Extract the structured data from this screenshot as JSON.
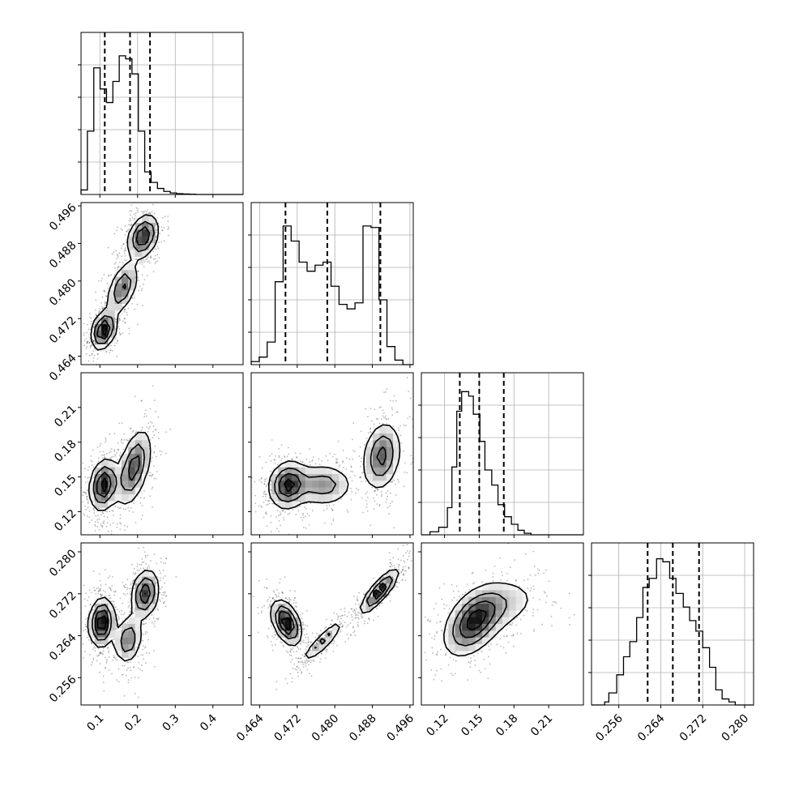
{
  "chart_data": {
    "type": "corner",
    "grid": true,
    "parameters": [
      {
        "range": [
          0.05,
          0.48
        ],
        "ticks": [
          0.1,
          0.2,
          0.3,
          0.4
        ],
        "tick_labels": [
          "0.1",
          "0.2",
          "0.3",
          "0.4"
        ],
        "quantiles": [
          0.113,
          0.18,
          0.233
        ],
        "hist_edges": [
          0.05,
          0.0669,
          0.0838,
          0.1007,
          0.1176,
          0.1345,
          0.1514,
          0.1683,
          0.1852,
          0.2021,
          0.219,
          0.2359,
          0.2528,
          0.2697,
          0.2866,
          0.3035,
          0.3204,
          0.3373,
          0.3542,
          0.48
        ],
        "hist_counts": [
          0.03,
          0.42,
          0.84,
          0.7,
          0.61,
          0.75,
          0.92,
          0.9,
          0.8,
          0.42,
          0.15,
          0.08,
          0.04,
          0.02,
          0.01,
          0.005,
          0.003,
          0.002,
          0
        ]
      },
      {
        "range": [
          0.4622,
          0.4967
        ],
        "ticks": [
          0.464,
          0.472,
          0.48,
          0.488,
          0.496
        ],
        "tick_labels": [
          "0.464",
          "0.472",
          "0.480",
          "0.488",
          "0.496"
        ],
        "quantiles": [
          0.4695,
          0.4784,
          0.4897
        ],
        "hist_edges": [
          0.4622,
          0.4639,
          0.4656,
          0.4673,
          0.469,
          0.4707,
          0.4724,
          0.4741,
          0.4758,
          0.4775,
          0.4792,
          0.4809,
          0.4826,
          0.4843,
          0.486,
          0.4877,
          0.4894,
          0.4911,
          0.4928,
          0.4945,
          0.4967
        ],
        "hist_counts": [
          0.02,
          0.05,
          0.15,
          0.55,
          0.92,
          0.82,
          0.68,
          0.62,
          0.66,
          0.68,
          0.52,
          0.4,
          0.37,
          0.41,
          0.92,
          0.91,
          0.43,
          0.12,
          0.03,
          0.0
        ],
        "note_hist_counts_are_relative_bar_heights": ""
      },
      {
        "range": [
          0.1,
          0.24
        ],
        "ticks": [
          0.12,
          0.15,
          0.18,
          0.21
        ],
        "tick_labels": [
          "0.12",
          "0.15",
          "0.18",
          "0.21"
        ],
        "quantiles": [
          0.1332,
          0.15,
          0.1712
        ],
        "hist_edges": [
          0.1,
          0.1075,
          0.115,
          0.1225,
          0.1264,
          0.1306,
          0.1348,
          0.1409,
          0.1449,
          0.1506,
          0.1549,
          0.1608,
          0.1662,
          0.1719,
          0.1778,
          0.1834,
          0.1889,
          0.1947,
          0.1998,
          0.2061,
          0.24
        ],
        "hist_counts": [
          0.0,
          0.02,
          0.05,
          0.18,
          0.45,
          0.82,
          0.95,
          0.92,
          0.8,
          0.62,
          0.43,
          0.33,
          0.2,
          0.12,
          0.07,
          0.03,
          0.01,
          0.0,
          0.0,
          0.0
        ]
      },
      {
        "range": [
          0.2508,
          0.2817
        ],
        "ticks": [
          0.256,
          0.264,
          0.272,
          0.28
        ],
        "tick_labels": [
          "0.256",
          "0.264",
          "0.272",
          "0.280"
        ],
        "quantiles": [
          0.2615,
          0.2663,
          0.2713
        ],
        "hist_edges": [
          0.2508,
          0.2533,
          0.2541,
          0.2556,
          0.2569,
          0.2581,
          0.2594,
          0.2606,
          0.2618,
          0.2632,
          0.2644,
          0.2657,
          0.2669,
          0.2683,
          0.2695,
          0.2707,
          0.272,
          0.2733,
          0.2745,
          0.2757,
          0.277,
          0.2782,
          0.2795,
          0.2817
        ],
        "hist_counts": [
          0.0,
          0.02,
          0.08,
          0.2,
          0.32,
          0.42,
          0.58,
          0.78,
          0.84,
          0.97,
          0.95,
          0.84,
          0.74,
          0.65,
          0.56,
          0.49,
          0.38,
          0.25,
          0.1,
          0.04,
          0.02,
          0.0,
          0.0
        ]
      }
    ],
    "pairs": [
      {
        "row": 1,
        "col": 0,
        "clusters": [
          {
            "x": 0.11,
            "y": 0.4695,
            "sx": 0.018,
            "sy": 0.0022,
            "rho": 0.3,
            "w": 1.0
          },
          {
            "x": 0.16,
            "y": 0.4785,
            "sx": 0.022,
            "sy": 0.003,
            "rho": 0.5,
            "w": 0.7
          },
          {
            "x": 0.215,
            "y": 0.4895,
            "sx": 0.022,
            "sy": 0.0025,
            "rho": 0.3,
            "w": 0.9
          }
        ]
      },
      {
        "row": 2,
        "col": 0,
        "clusters": [
          {
            "x": 0.11,
            "y": 0.143,
            "sx": 0.02,
            "sy": 0.012,
            "rho": 0.2,
            "w": 1.0
          },
          {
            "x": 0.19,
            "y": 0.158,
            "sx": 0.025,
            "sy": 0.018,
            "rho": 0.5,
            "w": 0.8
          }
        ]
      },
      {
        "row": 2,
        "col": 1,
        "clusters": [
          {
            "x": 0.47,
            "y": 0.143,
            "sx": 0.0022,
            "sy": 0.011,
            "rho": 0.1,
            "w": 1.0
          },
          {
            "x": 0.4775,
            "y": 0.143,
            "sx": 0.0035,
            "sy": 0.01,
            "rho": 0.0,
            "w": 0.6
          },
          {
            "x": 0.49,
            "y": 0.168,
            "sx": 0.0022,
            "sy": 0.016,
            "rho": 0.2,
            "w": 0.8
          }
        ]
      },
      {
        "row": 3,
        "col": 0,
        "clusters": [
          {
            "x": 0.105,
            "y": 0.2665,
            "sx": 0.018,
            "sy": 0.0025,
            "rho": 0.1,
            "w": 1.0
          },
          {
            "x": 0.175,
            "y": 0.2632,
            "sx": 0.02,
            "sy": 0.0025,
            "rho": 0.2,
            "w": 0.6
          },
          {
            "x": 0.22,
            "y": 0.272,
            "sx": 0.02,
            "sy": 0.0025,
            "rho": 0.2,
            "w": 0.8
          }
        ]
      },
      {
        "row": 3,
        "col": 1,
        "clusters": [
          {
            "x": 0.4697,
            "y": 0.2665,
            "sx": 0.0017,
            "sy": 0.0023,
            "rho": -0.45,
            "w": 1.0
          },
          {
            "x": 0.4775,
            "y": 0.263,
            "sx": 0.0025,
            "sy": 0.0023,
            "rho": 0.9,
            "w": 0.5
          },
          {
            "x": 0.4895,
            "y": 0.2725,
            "sx": 0.0022,
            "sy": 0.0023,
            "rho": 0.85,
            "w": 0.9
          }
        ]
      },
      {
        "row": 3,
        "col": 2,
        "clusters": [
          {
            "x": 0.145,
            "y": 0.2665,
            "sx": 0.014,
            "sy": 0.0035,
            "rho": 0.45,
            "w": 1.0
          },
          {
            "x": 0.17,
            "y": 0.27,
            "sx": 0.02,
            "sy": 0.003,
            "rho": 0.3,
            "w": 0.35
          }
        ]
      }
    ],
    "axis_labels": []
  }
}
